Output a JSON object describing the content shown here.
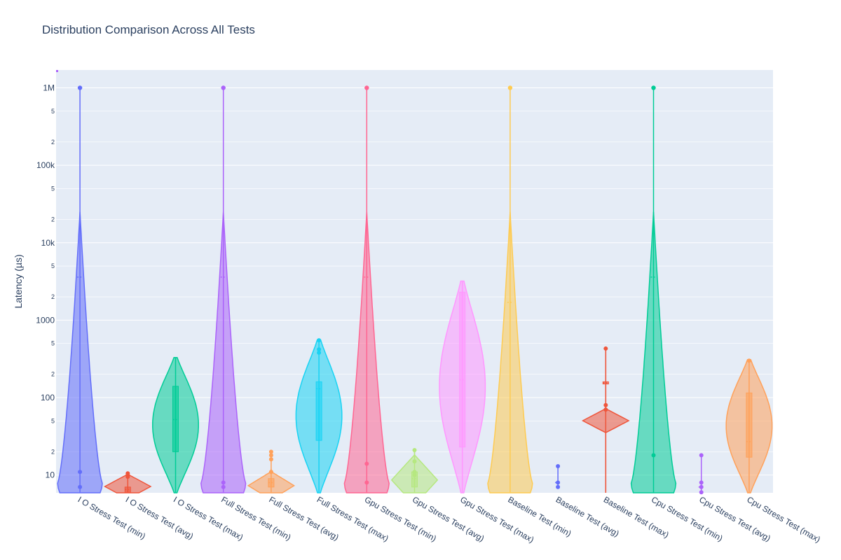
{
  "chart_data": {
    "type": "violin",
    "title": "Distribution Comparison Across All Tests",
    "xlabel": "",
    "ylabel": "Latency (µs)",
    "y_scale": "log",
    "ylim": [
      5.9,
      1700000
    ],
    "grid": true,
    "y_major_ticks": [
      {
        "value": 10,
        "label": "10"
      },
      {
        "value": 100,
        "label": "100"
      },
      {
        "value": 1000,
        "label": "1000"
      },
      {
        "value": 10000,
        "label": "10k"
      },
      {
        "value": 100000,
        "label": "100k"
      },
      {
        "value": 1000000,
        "label": "1M"
      }
    ],
    "y_minor_ticks": [
      {
        "value": 20,
        "label": "2"
      },
      {
        "value": 50,
        "label": "5"
      },
      {
        "value": 200,
        "label": "2"
      },
      {
        "value": 500,
        "label": "5"
      },
      {
        "value": 2000,
        "label": "2"
      },
      {
        "value": 5000,
        "label": "5"
      },
      {
        "value": 20000,
        "label": "2"
      },
      {
        "value": 50000,
        "label": "5"
      },
      {
        "value": 200000,
        "label": "2"
      },
      {
        "value": 500000,
        "label": "5"
      }
    ],
    "categories": [
      "I O Stress Test (min)",
      "I O Stress Test (avg)",
      "I O Stress Test (max)",
      "Full Stress Test (min)",
      "Full Stress Test (avg)",
      "Full Stress Test (max)",
      "Gpu Stress Test (min)",
      "Gpu Stress Test (avg)",
      "Gpu Stress Test (max)",
      "Baseline Test (min)",
      "Baseline Test (avg)",
      "Baseline Test (max)",
      "Cpu Stress Test (min)",
      "Cpu Stress Test (avg)",
      "Cpu Stress Test (max)"
    ],
    "series": [
      {
        "color": "#636efa",
        "kind": "tall",
        "min": 5,
        "max": 1000000,
        "median": 3600,
        "body_top": 25000,
        "outliers": [
          11,
          7
        ]
      },
      {
        "color": "#ef553b",
        "kind": "small",
        "min": 5,
        "max": 11,
        "median": 6.5,
        "q1": 6,
        "q3": 7,
        "body_top": 11,
        "outliers": [
          9.5,
          10.5
        ]
      },
      {
        "color": "#00cc96",
        "kind": "mid",
        "min": 5,
        "max": 330,
        "median": 52,
        "q1": 20,
        "q3": 140,
        "body_top": 330,
        "outliers": []
      },
      {
        "color": "#ab63fa",
        "kind": "tall",
        "min": 5,
        "max": 1000000,
        "median": 3600,
        "body_top": 25000,
        "outliers": [
          8,
          7
        ]
      },
      {
        "color": "#ffa15a",
        "kind": "small",
        "min": 5,
        "max": 20,
        "median": 8,
        "q1": 7,
        "q3": 9,
        "body_top": 12,
        "outliers": [
          20,
          18,
          16,
          11
        ]
      },
      {
        "color": "#19d3f3",
        "kind": "mid",
        "min": 5,
        "max": 550,
        "median": 130,
        "q1": 28,
        "q3": 160,
        "body_top": 560,
        "outliers": [
          550,
          420,
          380
        ]
      },
      {
        "color": "#ff6692",
        "kind": "tall",
        "min": 5,
        "max": 1000000,
        "median": 3600,
        "body_top": 25000,
        "outliers": [
          14,
          8
        ]
      },
      {
        "color": "#b6e880",
        "kind": "small",
        "min": 5,
        "max": 21,
        "median": 9,
        "q1": 7,
        "q3": 11,
        "body_top": 21,
        "outliers": [
          21,
          15,
          11,
          10
        ]
      },
      {
        "color": "#ff97ff",
        "kind": "mid",
        "min": 5,
        "max": 3200,
        "median": 170,
        "q1": 23,
        "q3": 2300,
        "body_top": 3200,
        "outliers": []
      },
      {
        "color": "#fecb52",
        "kind": "tall",
        "min": 5,
        "max": 1000000,
        "median": 1700,
        "body_top": 25000,
        "outliers": []
      },
      {
        "color": "#636efa",
        "kind": "point",
        "min": 7,
        "max": 13,
        "median": 8,
        "body_top": 13,
        "outliers": [
          13,
          8,
          7
        ]
      },
      {
        "color": "#ef553b",
        "kind": "flat",
        "min": 5,
        "max": 430,
        "median": 155,
        "q1": 150,
        "q3": 160,
        "body_top": 430,
        "outliers": [
          430,
          80,
          70
        ]
      },
      {
        "color": "#00cc96",
        "kind": "tall",
        "min": 5,
        "max": 1000000,
        "median": 3600,
        "body_top": 25000,
        "outliers": [
          18
        ]
      },
      {
        "color": "#ab63fa",
        "kind": "point",
        "min": 6,
        "max": 18,
        "median": 7,
        "body_top": 18,
        "outliers": [
          18,
          8,
          7,
          6
        ]
      },
      {
        "color": "#ffa15a",
        "kind": "mid",
        "min": 5,
        "max": 310,
        "median": 27,
        "q1": 17,
        "q3": 115,
        "body_top": 310,
        "outliers": [
          300
        ]
      }
    ]
  }
}
